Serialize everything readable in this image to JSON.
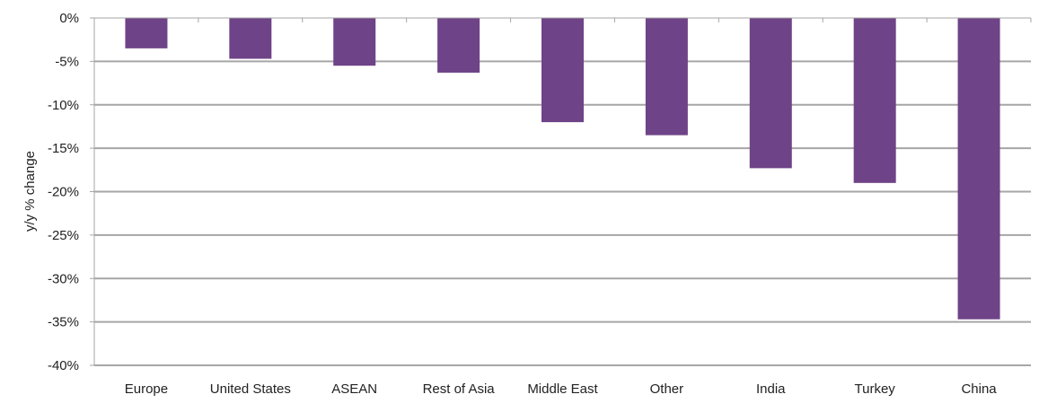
{
  "chart_data": {
    "type": "bar",
    "title": "",
    "xlabel": "",
    "ylabel": "y/y % change",
    "categories": [
      "Europe",
      "United States",
      "ASEAN",
      "Rest of Asia",
      "Middle East",
      "Other",
      "India",
      "Turkey",
      "China"
    ],
    "values": [
      -3.5,
      -4.7,
      -5.5,
      -6.3,
      -12.0,
      -13.5,
      -17.3,
      -19.0,
      -34.7
    ],
    "ylim": [
      -40,
      0
    ],
    "yticks": [
      0,
      -5,
      -10,
      -15,
      -20,
      -25,
      -30,
      -35,
      -40
    ],
    "ytick_labels": [
      "0%",
      "-5%",
      "-10%",
      "-15%",
      "-20%",
      "-25%",
      "-30%",
      "-35%",
      "-40%"
    ],
    "grid": true,
    "legend": "none",
    "colors": {
      "bar": "#6f4387",
      "grid": "#a6a6a6",
      "axis": "#a6a6a6",
      "text": "#222222"
    }
  }
}
